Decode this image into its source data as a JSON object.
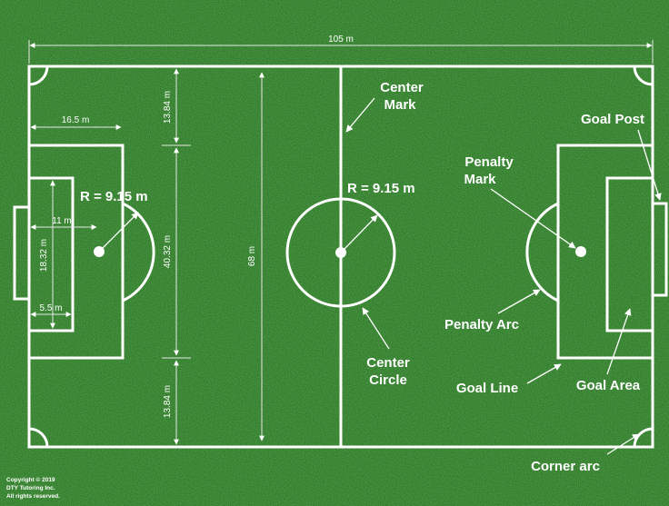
{
  "colors": {
    "grass_dark": "#1f5c1c",
    "grass_mid": "#2f7a2a",
    "grass_light": "#3f9436",
    "line": "#ffffff"
  },
  "measurements": {
    "field_length": "105 m",
    "field_width": "68 m",
    "penalty_area_depth": "16.5 m",
    "penalty_area_width": "40.32 m",
    "goal_area_depth": "5.5 m",
    "goal_area_width": "18.32 m",
    "penalty_spot_distance": "11 m",
    "side_gap_top": "13.84 m",
    "side_gap_bottom": "13.84 m",
    "radius_penalty": "R = 9.15 m",
    "radius_center": "R = 9.15 m"
  },
  "labels": {
    "center_mark_1": "Center",
    "center_mark_2": "Mark",
    "goal_post": "Goal Post",
    "penalty_mark_1": "Penalty",
    "penalty_mark_2": "Mark",
    "penalty_arc": "Penalty Arc",
    "center_circle_1": "Center",
    "center_circle_2": "Circle",
    "goal_line": "Goal Line",
    "goal_area": "Goal Area",
    "corner_arc": "Corner arc"
  },
  "copyright": {
    "line1": "Copyright © 2019",
    "line2": "DTY Tutoring Inc.",
    "line3": "All rights reserved."
  }
}
